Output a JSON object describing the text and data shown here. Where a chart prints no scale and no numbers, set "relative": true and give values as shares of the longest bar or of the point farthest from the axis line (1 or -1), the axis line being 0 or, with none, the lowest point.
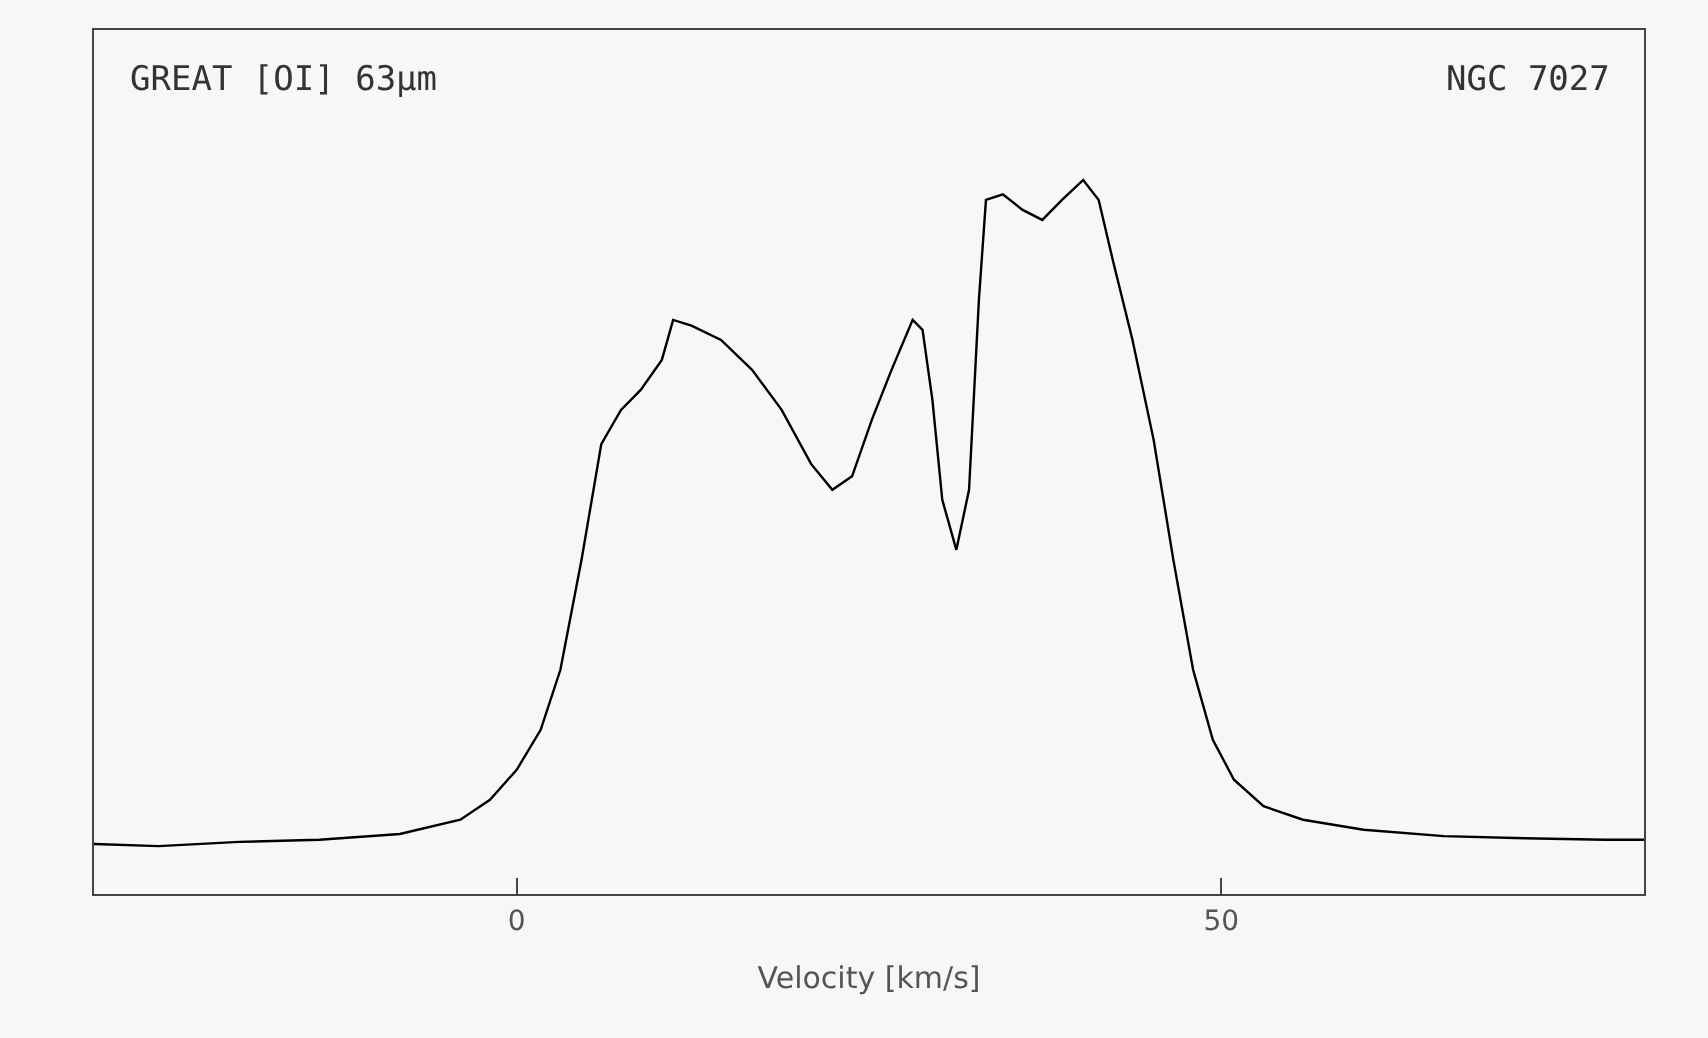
{
  "chart_data": {
    "type": "line",
    "relative": true,
    "xlabel": "Velocity [km/s]",
    "annotations": [
      "GREAT [OI] 63μm",
      "NGC 7027"
    ],
    "xlim": [
      -30,
      80
    ],
    "xticks": [
      0,
      50
    ],
    "line_style": "solid",
    "series": [
      {
        "color": "#000000",
        "x": [
          -30.0,
          -25.4,
          -19.7,
          -14.0,
          -8.3,
          -4.0,
          -1.9,
          0,
          1.7,
          3.1,
          4.6,
          6.0,
          7.4,
          8.8,
          10.3,
          11.1,
          12.4,
          14.5,
          16.7,
          18.8,
          20.9,
          22.4,
          23.8,
          25.2,
          26.6,
          28.1,
          28.8,
          29.5,
          30.2,
          31.2,
          32.1,
          32.8,
          33.3,
          34.5,
          35.9,
          37.3,
          38.7,
          40.2,
          41.3,
          42.3,
          43.7,
          45.2,
          46.6,
          48.0,
          49.4,
          50.9,
          53.0,
          55.8,
          60.1,
          65.8,
          71.5,
          77.2,
          80
        ],
        "values": [
          0.07,
          0.067,
          0.073,
          0.076,
          0.084,
          0.104,
          0.132,
          0.174,
          0.23,
          0.314,
          0.468,
          0.63,
          0.678,
          0.706,
          0.748,
          0.804,
          0.796,
          0.776,
          0.734,
          0.678,
          0.602,
          0.566,
          0.585,
          0.664,
          0.734,
          0.804,
          0.79,
          0.692,
          0.552,
          0.482,
          0.566,
          0.832,
          0.972,
          0.98,
          0.958,
          0.944,
          0.972,
          1,
          0.972,
          0.888,
          0.776,
          0.636,
          0.468,
          0.314,
          0.216,
          0.16,
          0.123,
          0.104,
          0.09,
          0.081,
          0.078,
          0.076,
          0.076
        ]
      }
    ]
  }
}
